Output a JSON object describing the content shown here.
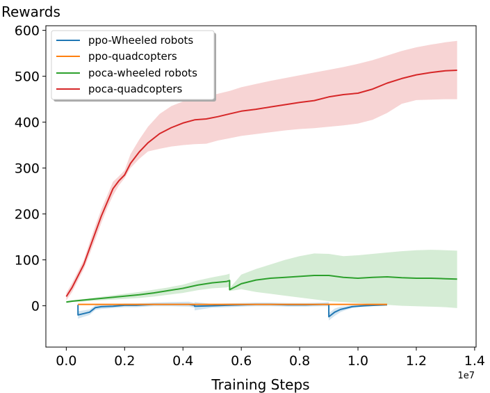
{
  "chart_data": {
    "type": "line",
    "title": "",
    "ylabel": "Rewards",
    "xlabel": "Training Steps",
    "x_offset_label": "1e7",
    "xlim": [
      -0.07,
      1.405
    ],
    "ylim": [
      -90,
      610
    ],
    "x_ticks": [
      0.0,
      0.2,
      0.4,
      0.6,
      0.8,
      1.0,
      1.2,
      1.4
    ],
    "x_tick_labels": [
      "0.0",
      "0.2",
      "0.4",
      "0.6",
      "0.8",
      "1.0",
      "1.2",
      "1.4"
    ],
    "y_ticks": [
      0,
      100,
      200,
      300,
      400,
      500,
      600
    ],
    "y_tick_labels": [
      "0",
      "100",
      "200",
      "300",
      "400",
      "500",
      "600"
    ],
    "legend_position": "upper-left",
    "series": [
      {
        "name": "ppo-Wheeled robots",
        "color": "#1f77b4",
        "x": [
          0.04,
          0.04,
          0.06,
          0.08,
          0.1,
          0.12,
          0.16,
          0.2,
          0.24,
          0.3,
          0.36,
          0.42,
          0.44,
          0.44,
          0.5,
          0.55,
          0.6,
          0.65,
          0.7,
          0.76,
          0.82,
          0.88,
          0.9,
          0.9,
          0.92,
          0.94,
          0.96,
          0.98,
          1.0,
          1.02,
          1.06,
          1.1
        ],
        "y": [
          2,
          -20,
          -17,
          -14,
          -4,
          -2,
          -1,
          1,
          1,
          3,
          3,
          3,
          1,
          -1,
          0,
          1,
          2,
          3,
          3,
          2,
          2,
          3,
          3,
          -24,
          -14,
          -8,
          -5,
          -2,
          -1,
          0,
          1,
          2
        ],
        "band_low": [
          1,
          -28,
          -24,
          -20,
          -9,
          -7,
          -5,
          -3,
          -3,
          -1,
          -1,
          -2,
          -4,
          -10,
          -4,
          -3,
          -2,
          -1,
          -1,
          -2,
          -2,
          -1,
          -1,
          -32,
          -22,
          -14,
          -9,
          -5,
          -3,
          -2,
          0,
          1
        ],
        "band_high": [
          3,
          -12,
          -10,
          -8,
          1,
          3,
          3,
          5,
          5,
          7,
          8,
          9,
          6,
          8,
          4,
          5,
          6,
          7,
          7,
          6,
          6,
          7,
          8,
          -16,
          -6,
          -2,
          -1,
          1,
          1,
          2,
          2,
          3
        ]
      },
      {
        "name": "ppo-quadcopters",
        "color": "#ff7f0e",
        "x": [
          0.04,
          0.1,
          0.2,
          0.3,
          0.4,
          0.5,
          0.6,
          0.7,
          0.8,
          0.9,
          1.0,
          1.1
        ],
        "y": [
          3,
          3,
          3,
          3,
          3,
          3,
          3,
          3,
          3,
          3,
          3,
          3
        ],
        "band_low": [
          2,
          2,
          2,
          2,
          2,
          2,
          2,
          2,
          2,
          2,
          2,
          2
        ],
        "band_high": [
          4,
          4,
          4,
          4,
          4,
          4,
          4,
          4,
          4,
          4,
          4,
          4
        ]
      },
      {
        "name": "poca-wheeled robots",
        "color": "#2ca02c",
        "x": [
          0.0,
          0.02,
          0.05,
          0.1,
          0.15,
          0.2,
          0.25,
          0.3,
          0.35,
          0.4,
          0.45,
          0.5,
          0.55,
          0.56,
          0.56,
          0.6,
          0.65,
          0.7,
          0.75,
          0.8,
          0.85,
          0.9,
          0.95,
          1.0,
          1.05,
          1.1,
          1.15,
          1.2,
          1.25,
          1.3,
          1.34
        ],
        "y": [
          8,
          10,
          12,
          15,
          18,
          21,
          24,
          28,
          33,
          38,
          45,
          50,
          53,
          55,
          35,
          48,
          56,
          60,
          62,
          64,
          66,
          66,
          62,
          60,
          62,
          63,
          61,
          60,
          60,
          59,
          58
        ],
        "band_low": [
          6,
          8,
          9,
          11,
          13,
          15,
          17,
          20,
          24,
          28,
          34,
          38,
          40,
          42,
          32,
          36,
          30,
          26,
          22,
          18,
          14,
          10,
          8,
          6,
          4,
          2,
          0,
          -1,
          -2,
          -3,
          -5
        ],
        "band_high": [
          10,
          12,
          14,
          18,
          22,
          26,
          30,
          35,
          40,
          46,
          55,
          62,
          68,
          70,
          38,
          68,
          80,
          90,
          100,
          108,
          114,
          113,
          108,
          110,
          113,
          116,
          119,
          121,
          122,
          121,
          120
        ]
      },
      {
        "name": "poca-quadcopters",
        "color": "#d62728",
        "x": [
          0.0,
          0.02,
          0.04,
          0.06,
          0.08,
          0.1,
          0.12,
          0.14,
          0.16,
          0.18,
          0.2,
          0.22,
          0.25,
          0.28,
          0.32,
          0.36,
          0.4,
          0.44,
          0.48,
          0.52,
          0.56,
          0.6,
          0.65,
          0.7,
          0.75,
          0.8,
          0.85,
          0.9,
          0.95,
          1.0,
          1.05,
          1.1,
          1.15,
          1.2,
          1.25,
          1.3,
          1.34
        ],
        "y": [
          20,
          40,
          65,
          90,
          125,
          160,
          195,
          225,
          255,
          272,
          285,
          310,
          335,
          355,
          375,
          388,
          398,
          405,
          407,
          412,
          418,
          424,
          428,
          433,
          438,
          443,
          447,
          455,
          460,
          463,
          472,
          485,
          495,
          503,
          508,
          512,
          513
        ],
        "band_low": [
          12,
          30,
          55,
          80,
          112,
          145,
          180,
          212,
          240,
          262,
          278,
          300,
          320,
          336,
          342,
          347,
          350,
          352,
          353,
          360,
          365,
          370,
          374,
          378,
          382,
          385,
          387,
          390,
          393,
          397,
          405,
          420,
          440,
          448,
          449,
          450,
          450
        ],
        "band_high": [
          28,
          50,
          75,
          100,
          138,
          175,
          210,
          240,
          270,
          282,
          295,
          330,
          362,
          390,
          418,
          435,
          445,
          452,
          456,
          462,
          468,
          476,
          483,
          490,
          496,
          502,
          508,
          514,
          520,
          527,
          535,
          545,
          555,
          563,
          569,
          574,
          577
        ]
      }
    ]
  }
}
